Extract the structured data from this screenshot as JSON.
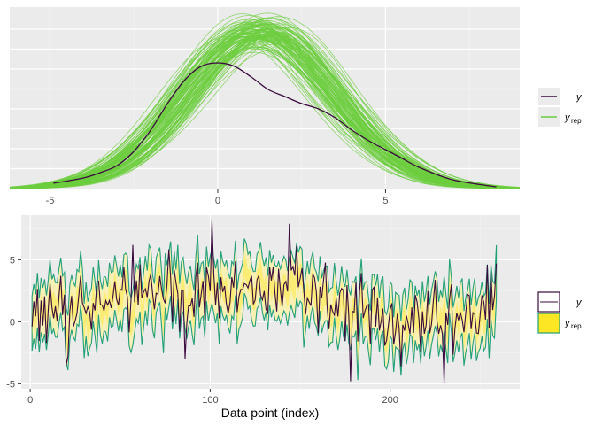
{
  "chart_data": [
    {
      "type": "line",
      "subtype": "density overlay",
      "xlim": [
        -6.2,
        9.0
      ],
      "ylim": [
        0,
        1
      ],
      "y_axis_labels": "none",
      "xticks": [
        -5,
        0,
        5
      ],
      "grid": true,
      "legend": {
        "placement": "right",
        "entries": [
          {
            "label": "y",
            "color": "#3a0a3e"
          },
          {
            "label": "y",
            "subscript": "rep",
            "color": "#6ccd3e"
          }
        ]
      },
      "series": [
        {
          "name": "y",
          "color": "#3a0a3e",
          "x": [
            -4.9,
            -4,
            -3.5,
            -3,
            -2.5,
            -2,
            -1.5,
            -1,
            -0.5,
            0,
            0.5,
            1,
            1.5,
            2,
            2.5,
            3,
            3.5,
            4,
            4.5,
            5,
            5.5,
            6,
            7,
            8.3
          ],
          "y": [
            0.03,
            0.06,
            0.09,
            0.13,
            0.21,
            0.33,
            0.48,
            0.61,
            0.69,
            0.71,
            0.69,
            0.63,
            0.56,
            0.52,
            0.48,
            0.45,
            0.4,
            0.33,
            0.27,
            0.22,
            0.17,
            0.12,
            0.05,
            0.01
          ]
        }
      ],
      "replicates": {
        "name": "y",
        "subscript": "rep",
        "color": "#6ccd3e",
        "count": 100,
        "approx_mean": 1.3,
        "approx_sd": 2.2
      }
    },
    {
      "type": "line",
      "subtype": "predictive ribbon",
      "xlabel": "Data point (index)",
      "xlim": [
        -5,
        272
      ],
      "ylim": [
        -5.4,
        8.6
      ],
      "xticks": [
        0,
        100,
        200
      ],
      "yticks": [
        -5,
        0,
        5
      ],
      "grid": true,
      "legend": {
        "placement": "right",
        "entries": [
          {
            "label": "y",
            "swatch": "box",
            "color": "#3a0a3e"
          },
          {
            "label": "y",
            "subscript": "rep",
            "swatch": "fill",
            "color": "#fde725"
          }
        ]
      },
      "n_points": 259,
      "y_color": "#3a0a3e",
      "outer_band_color": "#21a07a",
      "inner_band_color": "#fde725",
      "mean_trend": {
        "x": [
          1,
          30,
          60,
          90,
          120,
          150,
          170,
          185,
          200,
          230,
          259
        ],
        "y": [
          1.0,
          1.1,
          2.2,
          2.2,
          2.3,
          2.5,
          1.8,
          1.0,
          0.0,
          0.3,
          0.4
        ]
      }
    }
  ]
}
